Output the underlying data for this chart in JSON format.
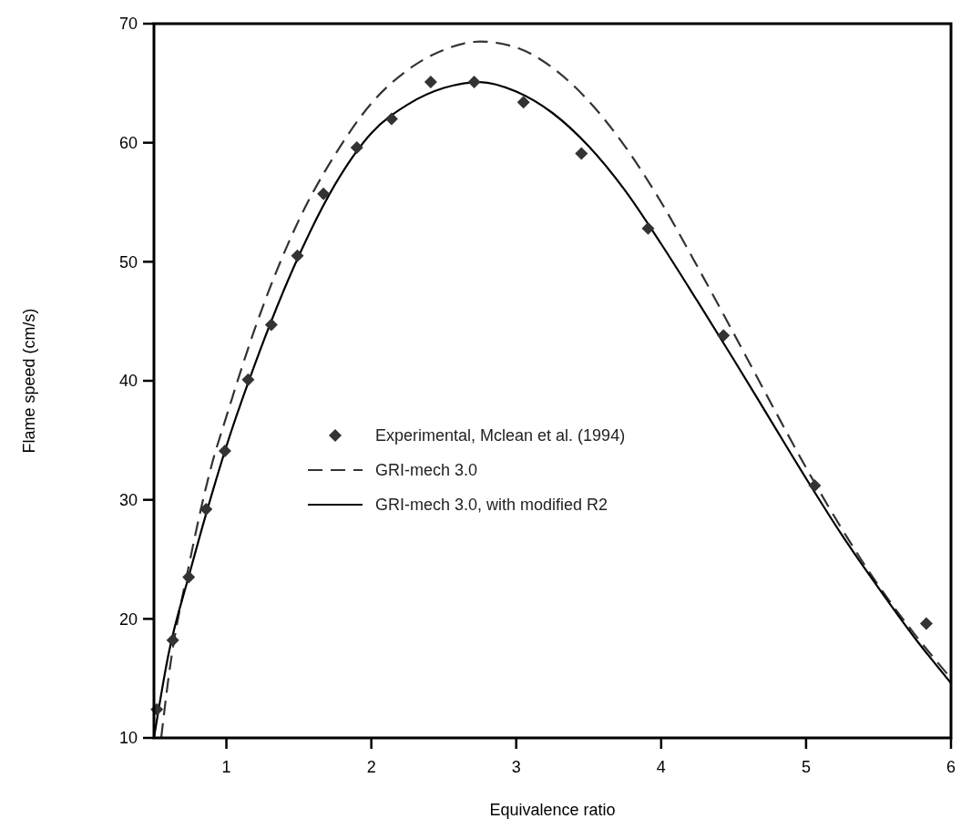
{
  "chart_data": {
    "type": "line",
    "xlabel": "Equivalence ratio",
    "ylabel": "Flame speed (cm/s)",
    "xlim": [
      0.5,
      6
    ],
    "xticks": [
      1,
      2,
      3,
      4,
      5,
      6
    ],
    "ylim": [
      10,
      70
    ],
    "yticks": [
      10,
      20,
      30,
      40,
      50,
      60,
      70
    ],
    "grid": false,
    "legend": "left",
    "series": [
      {
        "name": "Experimental, Mclean et al. (1994)",
        "type": "scatter",
        "marker": "diamond",
        "color": "#333333",
        "x": [
          0.52,
          0.63,
          0.74,
          0.86,
          0.99,
          1.15,
          1.31,
          1.49,
          1.67,
          1.9,
          2.14,
          2.41,
          2.71,
          3.05,
          3.45,
          3.91,
          4.43,
          5.06,
          5.83
        ],
        "values": [
          12.4,
          18.2,
          23.5,
          29.2,
          34.1,
          40.1,
          44.7,
          50.5,
          55.7,
          59.6,
          62.0,
          65.1,
          65.1,
          63.4,
          59.1,
          52.8,
          43.8,
          31.2,
          19.6
        ]
      },
      {
        "name": "GRI-mech 3.0",
        "type": "line",
        "line_style": "dashed",
        "color": "#333333",
        "x": [
          0.55,
          0.6,
          0.75,
          0.9,
          1.0,
          1.2,
          1.5,
          1.75,
          2.0,
          2.25,
          2.5,
          2.75,
          3.0,
          3.25,
          3.5,
          3.75,
          4.0,
          4.25,
          4.5,
          4.75,
          5.0,
          5.25,
          5.5,
          5.75,
          6.0
        ],
        "values": [
          10,
          15,
          25,
          33,
          37,
          44.5,
          53.5,
          59,
          63.3,
          66.1,
          67.8,
          68.5,
          68.0,
          66.3,
          63.5,
          59.7,
          55.0,
          49.6,
          44.0,
          38.3,
          32.7,
          27.5,
          22.8,
          18.7,
          15.0
        ]
      },
      {
        "name": "GRI-mech 3.0, with modified R2",
        "type": "line",
        "line_style": "solid",
        "color": "#000000",
        "x": [
          0.5,
          0.6,
          0.75,
          0.9,
          1.0,
          1.2,
          1.5,
          1.75,
          2.0,
          2.25,
          2.5,
          2.75,
          3.0,
          3.25,
          3.5,
          3.75,
          4.0,
          4.25,
          4.5,
          4.75,
          5.0,
          5.25,
          5.5,
          5.75,
          6.0
        ],
        "values": [
          10,
          17,
          24,
          30.5,
          34.5,
          41.5,
          50.5,
          56.5,
          60.8,
          63.2,
          64.6,
          65.1,
          64.3,
          62.5,
          59.7,
          56.0,
          51.5,
          46.7,
          41.8,
          36.8,
          31.8,
          27.0,
          22.6,
          18.4,
          14.6
        ]
      }
    ]
  }
}
